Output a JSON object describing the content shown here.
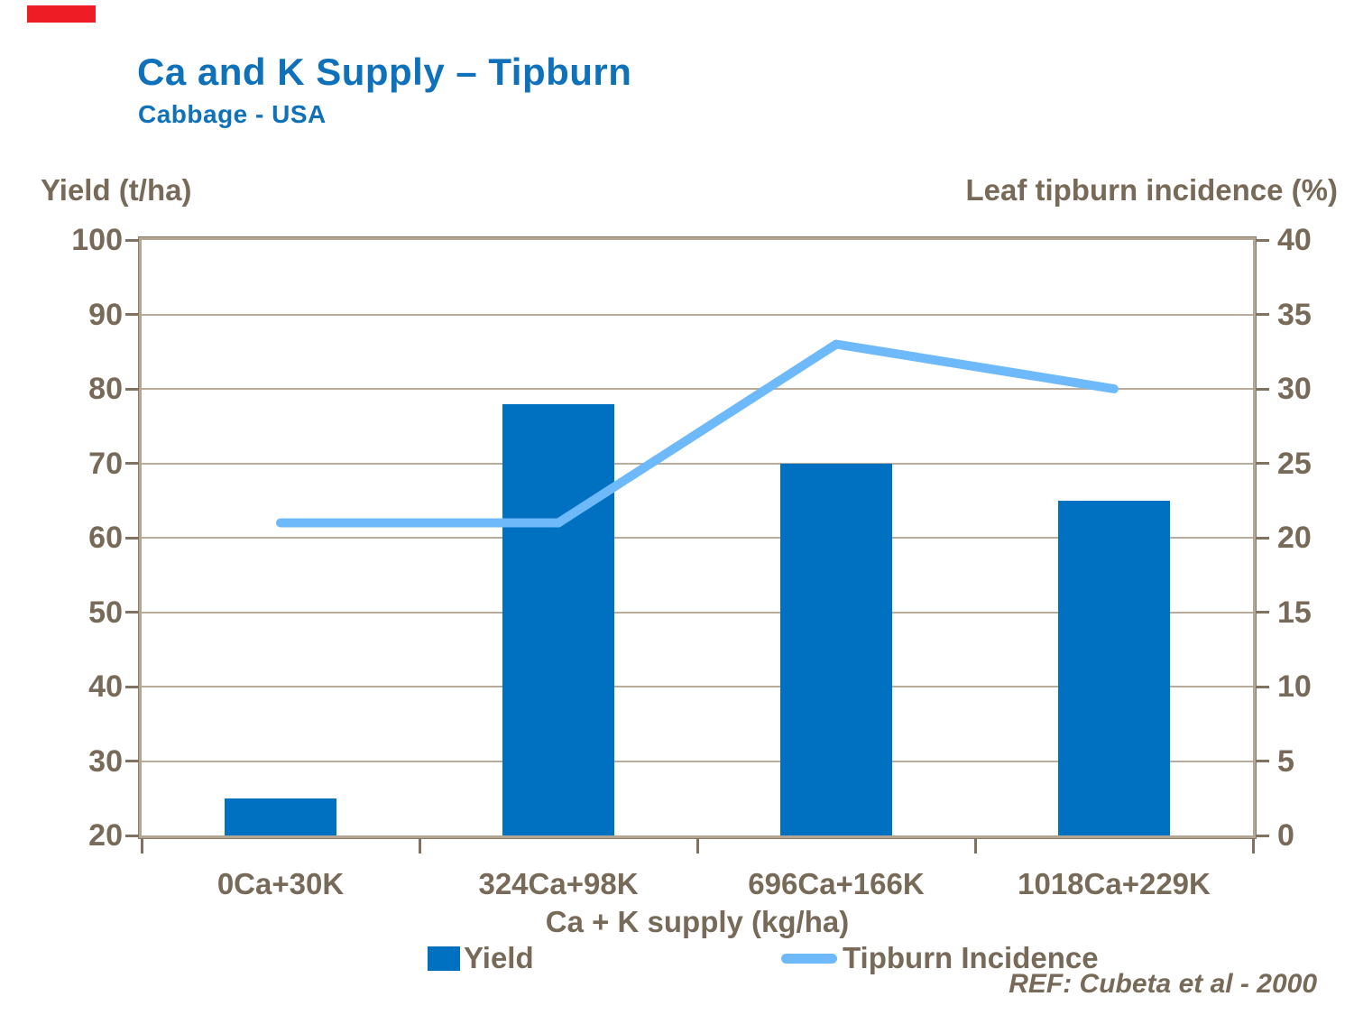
{
  "header": {
    "title": "Ca and K Supply – Tipburn",
    "subtitle": "Cabbage - USA"
  },
  "colors": {
    "accent_red": "#ee1c25",
    "title_blue": "#0e71ba",
    "axis_text": "#776a58",
    "bar_blue": "#0071c1",
    "line_blue": "#6eb9fa",
    "grid_tan": "#b9ac9b",
    "frame_tan": "#b3a695"
  },
  "chart_data": {
    "type": "bar+line combo, dual axis",
    "categories": [
      "0Ca+30K",
      "324Ca+98K",
      "696Ca+166K",
      "1018Ca+229K"
    ],
    "series": [
      {
        "name": "Yield",
        "type": "bar",
        "axis": "left",
        "color": "#0071c1",
        "values": [
          25,
          78,
          70,
          65
        ]
      },
      {
        "name": "Tipburn Incidence",
        "type": "line",
        "axis": "right",
        "color": "#6eb9fa",
        "values": [
          21,
          21,
          33,
          30
        ]
      }
    ],
    "left_axis": {
      "title": "Yield (t/ha)",
      "min": 20,
      "max": 100,
      "step": 10,
      "ticks": [
        100,
        90,
        80,
        70,
        60,
        50,
        40,
        30,
        20
      ]
    },
    "right_axis": {
      "title": "Leaf tipburn incidence (%)",
      "min": 0,
      "max": 40,
      "step": 5,
      "ticks": [
        40,
        35,
        30,
        25,
        20,
        15,
        10,
        5,
        0
      ]
    },
    "xlabel": "Ca + K supply (kg/ha)",
    "grid": true,
    "legend_position": "bottom"
  },
  "footer": {
    "reference": "REF: Cubeta et al - 2000"
  }
}
